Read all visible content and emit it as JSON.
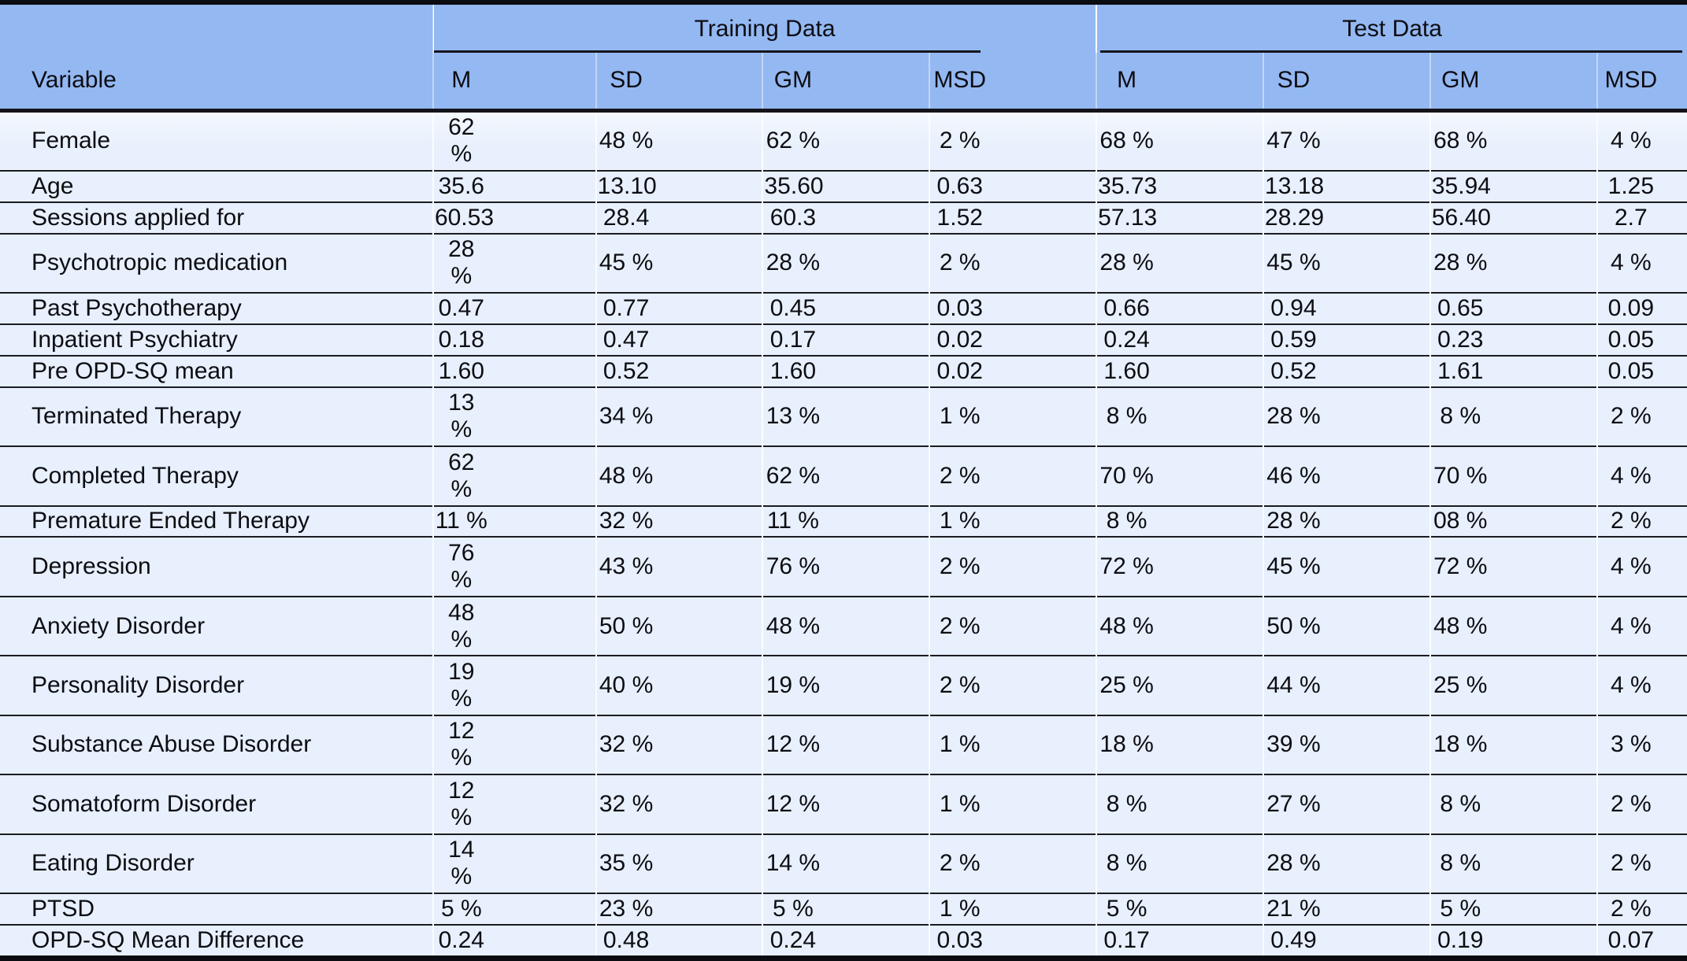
{
  "table": {
    "variable_header": "Variable",
    "groups": [
      {
        "label": "Training Data"
      },
      {
        "label": "Test Data"
      }
    ],
    "sub_headers": [
      "M",
      "SD",
      "GM",
      "MSD"
    ],
    "rows": [
      {
        "variable": "Female",
        "training": [
          "62 %",
          "48 %",
          "62 %",
          "2 %"
        ],
        "test": [
          "68 %",
          "47 %",
          "68 %",
          "4 %"
        ]
      },
      {
        "variable": "Age",
        "training": [
          "35.6",
          "13.10",
          "35.60",
          "0.63"
        ],
        "test": [
          "35.73",
          "13.18",
          "35.94",
          "1.25"
        ]
      },
      {
        "variable": "Sessions applied for",
        "training": [
          "60.53",
          "28.4",
          "60.3",
          "1.52"
        ],
        "test": [
          "57.13",
          "28.29",
          "56.40",
          "2.7"
        ]
      },
      {
        "variable": "Psychotropic medication",
        "training": [
          "28 %",
          "45 %",
          "28 %",
          "2 %"
        ],
        "test": [
          "28 %",
          "45 %",
          "28 %",
          "4 %"
        ]
      },
      {
        "variable": "Past Psychotherapy",
        "training": [
          "0.47",
          "0.77",
          "0.45",
          "0.03"
        ],
        "test": [
          "0.66",
          "0.94",
          "0.65",
          "0.09"
        ]
      },
      {
        "variable": "Inpatient Psychiatry",
        "training": [
          "0.18",
          "0.47",
          "0.17",
          "0.02"
        ],
        "test": [
          "0.24",
          "0.59",
          "0.23",
          "0.05"
        ]
      },
      {
        "variable": "Pre OPD-SQ mean",
        "training": [
          "1.60",
          "0.52",
          "1.60",
          "0.02"
        ],
        "test": [
          "1.60",
          "0.52",
          "1.61",
          "0.05"
        ]
      },
      {
        "variable": "Terminated Therapy",
        "training": [
          "13 %",
          "34 %",
          "13 %",
          "1 %"
        ],
        "test": [
          "8 %",
          "28 %",
          "8 %",
          "2 %"
        ]
      },
      {
        "variable": "Completed Therapy",
        "training": [
          "62 %",
          "48 %",
          "62 %",
          "2 %"
        ],
        "test": [
          "70 %",
          "46 %",
          "70 %",
          "4 %"
        ]
      },
      {
        "variable": "Premature Ended Therapy",
        "training": [
          "11 %",
          "32 %",
          "11 %",
          "1 %"
        ],
        "test": [
          "8 %",
          "28 %",
          "08 %",
          "2 %"
        ]
      },
      {
        "variable": "Depression",
        "training": [
          "76 %",
          "43 %",
          "76 %",
          "2 %"
        ],
        "test": [
          "72 %",
          "45 %",
          "72 %",
          "4 %"
        ]
      },
      {
        "variable": "Anxiety Disorder",
        "training": [
          "48 %",
          "50 %",
          "48 %",
          "2 %"
        ],
        "test": [
          "48 %",
          "50 %",
          "48 %",
          "4 %"
        ]
      },
      {
        "variable": "Personality Disorder",
        "training": [
          "19 %",
          "40 %",
          "19 %",
          "2 %"
        ],
        "test": [
          "25 %",
          "44 %",
          "25 %",
          "4 %"
        ]
      },
      {
        "variable": "Substance Abuse Disorder",
        "training": [
          "12 %",
          "32 %",
          "12 %",
          "1 %"
        ],
        "test": [
          "18 %",
          "39 %",
          "18 %",
          "3 %"
        ]
      },
      {
        "variable": "Somatoform Disorder",
        "training": [
          "12 %",
          "32 %",
          "12 %",
          "1 %"
        ],
        "test": [
          "8 %",
          "27 %",
          "8 %",
          "2 %"
        ]
      },
      {
        "variable": "Eating Disorder",
        "training": [
          "14 %",
          "35 %",
          "14 %",
          "2 %"
        ],
        "test": [
          "8 %",
          "28 %",
          "8 %",
          "2 %"
        ]
      },
      {
        "variable": "PTSD",
        "training": [
          "5 %",
          "23 %",
          "5 %",
          "1 %"
        ],
        "test": [
          "5 %",
          "21 %",
          "5 %",
          "2 %"
        ]
      },
      {
        "variable": "OPD-SQ Mean Difference",
        "training": [
          "0.24",
          "0.48",
          "0.24",
          "0.03"
        ],
        "test": [
          "0.17",
          "0.49",
          "0.19",
          "0.07"
        ]
      }
    ]
  },
  "colors": {
    "header_bg": "#94b8f2",
    "row_bg": "#e7f0fc",
    "rule_dark": "#14141b",
    "text": "#0d0d12"
  }
}
